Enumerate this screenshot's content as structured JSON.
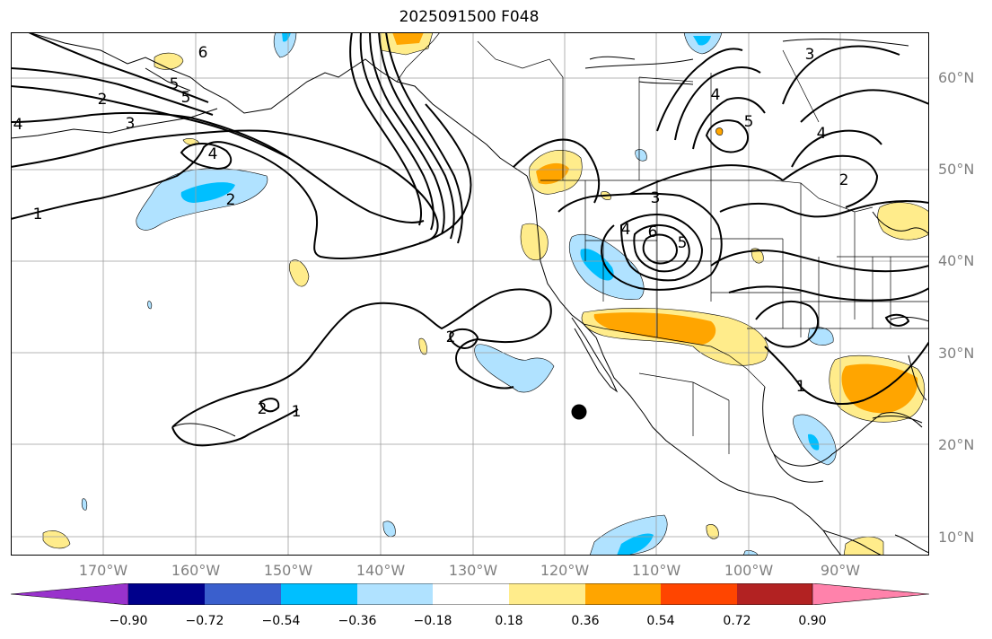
{
  "title": "2025091500 F048",
  "lat_labels": [
    "60°N",
    "50°N",
    "40°N",
    "30°N",
    "20°N",
    "10°N"
  ],
  "lon_labels": [
    "170°W",
    "160°W",
    "150°W",
    "140°W",
    "130°W",
    "120°W",
    "110°W",
    "100°W",
    "90°W"
  ],
  "contour_labels": [
    "1",
    "2",
    "3",
    "4",
    "5",
    "6"
  ],
  "colorbar": {
    "labels": [
      "−0.90",
      "−0.72",
      "−0.54",
      "−0.36",
      "−0.18",
      "0.18",
      "0.36",
      "0.54",
      "0.72",
      "0.90"
    ],
    "colors": [
      "#9932cc",
      "#00008b",
      "#3a5fcd",
      "#00bfff",
      "#b0e2ff",
      "#ffffff",
      "#ffec8b",
      "#ffa500",
      "#ff4500",
      "#b22222",
      "#ff82ab"
    ]
  },
  "colors": {
    "land_outline": "#000000",
    "grid": "#9e9e9e",
    "contour": "#000000"
  }
}
